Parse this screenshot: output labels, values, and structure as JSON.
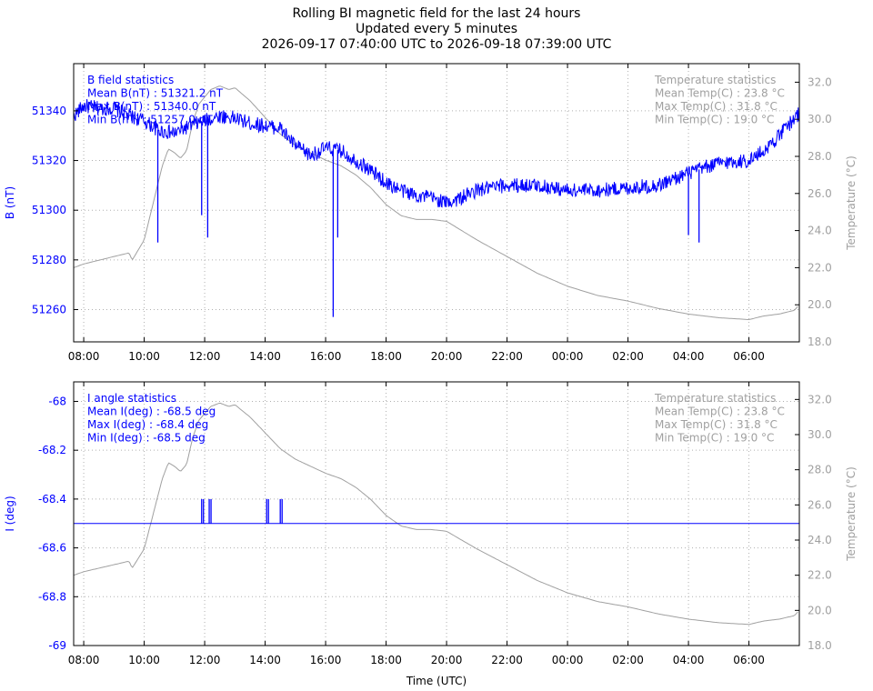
{
  "title": {
    "line1": "Rolling BI magnetic field for the last 24 hours",
    "line2": "Updated every 5 minutes",
    "line3": "2026-09-17 07:40:00 UTC to 2026-09-18 07:39:00 UTC"
  },
  "colors": {
    "primary": "#0000ff",
    "temperature": "#a0a0a0",
    "grid": "#b0b0b0",
    "axis": "#000000"
  },
  "chart_data": [
    {
      "type": "line",
      "x_unit": "hours since 2026-09-17 00:00 UTC",
      "xlim": [
        7.667,
        31.667
      ],
      "x_ticks": [
        8,
        10,
        12,
        14,
        16,
        18,
        20,
        22,
        24,
        26,
        28,
        30
      ],
      "x_tick_labels": [
        "08:00",
        "10:00",
        "12:00",
        "14:00",
        "16:00",
        "18:00",
        "20:00",
        "22:00",
        "00:00",
        "02:00",
        "04:00",
        "06:00"
      ],
      "ylabel": "B (nT)",
      "ylim": [
        51247,
        51359
      ],
      "y_ticks": [
        51260,
        51280,
        51300,
        51320,
        51340
      ],
      "y2label": "Temperature (°C)",
      "y2lim": [
        18,
        33
      ],
      "y2_ticks": [
        18,
        20,
        22,
        24,
        26,
        28,
        30,
        32
      ],
      "y2_tick_labels": [
        "18.0",
        "20.0",
        "22.0",
        "24.0",
        "26.0",
        "28.0",
        "30.0",
        "32.0"
      ],
      "grid": true,
      "stats_left": [
        "B field statistics",
        "Mean B(nT) : 51321.2 nT",
        "Max B(nT) : 51340.0 nT",
        "Min B(nT) : 51257.0 nT"
      ],
      "stats_right": [
        "Temperature statistics",
        "Mean Temp(C) : 23.8 °C",
        "Max Temp(C) : 31.8 °C",
        "Min Temp(C) : 19.0 °C"
      ],
      "series": [
        {
          "name": "B",
          "axis": "left",
          "x": [
            7.667,
            8.0,
            8.5,
            9.0,
            9.5,
            10.0,
            10.5,
            11.0,
            11.5,
            12.0,
            12.5,
            13.0,
            13.5,
            14.0,
            14.5,
            15.0,
            15.5,
            16.0,
            16.5,
            17.0,
            17.5,
            18.0,
            18.5,
            19.0,
            19.5,
            20.0,
            20.5,
            21.0,
            22.0,
            23.0,
            24.0,
            25.0,
            26.0,
            27.0,
            28.0,
            29.0,
            30.0,
            30.5,
            31.0,
            31.5,
            31.667
          ],
          "y": [
            51338,
            51342,
            51341,
            51341,
            51338,
            51336,
            51332,
            51331,
            51334,
            51336,
            51338,
            51337,
            51335,
            51334,
            51333,
            51326,
            51322,
            51325,
            51324,
            51320,
            51316,
            51311,
            51308,
            51306,
            51305,
            51303,
            51305,
            51308,
            51310,
            51310,
            51308,
            51308,
            51309,
            51310,
            51315,
            51319,
            51320,
            51324,
            51330,
            51337,
            51339
          ],
          "noise": 3,
          "spikes": [
            {
              "x": 10.45,
              "y": 51287
            },
            {
              "x": 11.9,
              "y": 51298
            },
            {
              "x": 12.1,
              "y": 51289
            },
            {
              "x": 16.25,
              "y": 51257
            },
            {
              "x": 16.4,
              "y": 51289
            },
            {
              "x": 28.0,
              "y": 51290
            },
            {
              "x": 28.35,
              "y": 51287
            }
          ]
        },
        {
          "name": "Temperature",
          "axis": "right",
          "x": [
            7.667,
            8.0,
            9.0,
            9.5,
            9.6,
            10.0,
            10.3,
            10.6,
            10.8,
            11.0,
            11.2,
            11.4,
            11.6,
            11.8,
            12.0,
            12.2,
            12.5,
            12.8,
            13.0,
            13.5,
            14.0,
            14.5,
            15.0,
            15.5,
            16.0,
            16.5,
            17.0,
            17.5,
            18.0,
            18.5,
            19.0,
            19.5,
            20.0,
            20.5,
            21.0,
            22.0,
            23.0,
            24.0,
            25.0,
            26.0,
            27.0,
            28.0,
            29.0,
            30.0,
            30.5,
            31.0,
            31.5,
            31.667
          ],
          "y": [
            22.0,
            22.2,
            22.6,
            22.8,
            22.4,
            23.5,
            25.5,
            27.5,
            28.4,
            28.2,
            27.9,
            28.3,
            29.8,
            30.8,
            31.2,
            31.6,
            31.8,
            31.6,
            31.7,
            31.0,
            30.1,
            29.2,
            28.6,
            28.2,
            27.8,
            27.5,
            27.0,
            26.3,
            25.4,
            24.8,
            24.6,
            24.6,
            24.5,
            24.0,
            23.5,
            22.6,
            21.7,
            21.0,
            20.5,
            20.2,
            19.8,
            19.5,
            19.3,
            19.2,
            19.4,
            19.5,
            19.7,
            20.0
          ]
        }
      ]
    },
    {
      "type": "line",
      "x_unit": "hours since 2026-09-17 00:00 UTC",
      "xlim": [
        7.667,
        31.667
      ],
      "x_ticks": [
        8,
        10,
        12,
        14,
        16,
        18,
        20,
        22,
        24,
        26,
        28,
        30
      ],
      "x_tick_labels": [
        "08:00",
        "10:00",
        "12:00",
        "14:00",
        "16:00",
        "18:00",
        "20:00",
        "22:00",
        "00:00",
        "02:00",
        "04:00",
        "06:00"
      ],
      "xlabel": "Time (UTC)",
      "ylabel": "I (deg)",
      "ylim": [
        -69.0,
        -67.92
      ],
      "y_ticks": [
        -69.0,
        -68.8,
        -68.6,
        -68.4,
        -68.2,
        -68.0
      ],
      "y_tick_labels": [
        "-69",
        "-68.8",
        "-68.6",
        "-68.4",
        "-68.2",
        "-68"
      ],
      "y2label": "Temperature (°C)",
      "y2lim": [
        18,
        33
      ],
      "y2_ticks": [
        18,
        20,
        22,
        24,
        26,
        28,
        30,
        32
      ],
      "y2_tick_labels": [
        "18.0",
        "20.0",
        "22.0",
        "24.0",
        "26.0",
        "28.0",
        "30.0",
        "32.0"
      ],
      "grid": true,
      "stats_left": [
        "I angle statistics",
        "Mean I(deg) : -68.5 deg",
        "Max I(deg) : -68.4 deg",
        "Min I(deg) : -68.5 deg"
      ],
      "stats_right": [
        "Temperature statistics",
        "Mean Temp(C) : 23.8 °C",
        "Max Temp(C) : 31.8 °C",
        "Min Temp(C) : 19.0 °C"
      ],
      "series": [
        {
          "name": "I",
          "axis": "left",
          "x": [
            7.667,
            31.667
          ],
          "y": [
            -68.5,
            -68.5
          ],
          "noise": 0,
          "spikes": [
            {
              "x": 11.9,
              "y": -68.4
            },
            {
              "x": 12.15,
              "y": -68.4
            },
            {
              "x": 14.05,
              "y": -68.4
            },
            {
              "x": 14.5,
              "y": -68.4
            }
          ]
        },
        {
          "name": "Temperature",
          "axis": "right",
          "x": [
            7.667,
            8.0,
            9.0,
            9.5,
            9.6,
            10.0,
            10.3,
            10.6,
            10.8,
            11.0,
            11.2,
            11.4,
            11.6,
            11.8,
            12.0,
            12.2,
            12.5,
            12.8,
            13.0,
            13.5,
            14.0,
            14.5,
            15.0,
            15.5,
            16.0,
            16.5,
            17.0,
            17.5,
            18.0,
            18.5,
            19.0,
            19.5,
            20.0,
            20.5,
            21.0,
            22.0,
            23.0,
            24.0,
            25.0,
            26.0,
            27.0,
            28.0,
            29.0,
            30.0,
            30.5,
            31.0,
            31.5,
            31.667
          ],
          "y": [
            22.0,
            22.2,
            22.6,
            22.8,
            22.4,
            23.5,
            25.5,
            27.5,
            28.4,
            28.2,
            27.9,
            28.3,
            29.8,
            30.8,
            31.2,
            31.6,
            31.8,
            31.6,
            31.7,
            31.0,
            30.1,
            29.2,
            28.6,
            28.2,
            27.8,
            27.5,
            27.0,
            26.3,
            25.4,
            24.8,
            24.6,
            24.6,
            24.5,
            24.0,
            23.5,
            22.6,
            21.7,
            21.0,
            20.5,
            20.2,
            19.8,
            19.5,
            19.3,
            19.2,
            19.4,
            19.5,
            19.7,
            20.0
          ]
        }
      ]
    }
  ]
}
